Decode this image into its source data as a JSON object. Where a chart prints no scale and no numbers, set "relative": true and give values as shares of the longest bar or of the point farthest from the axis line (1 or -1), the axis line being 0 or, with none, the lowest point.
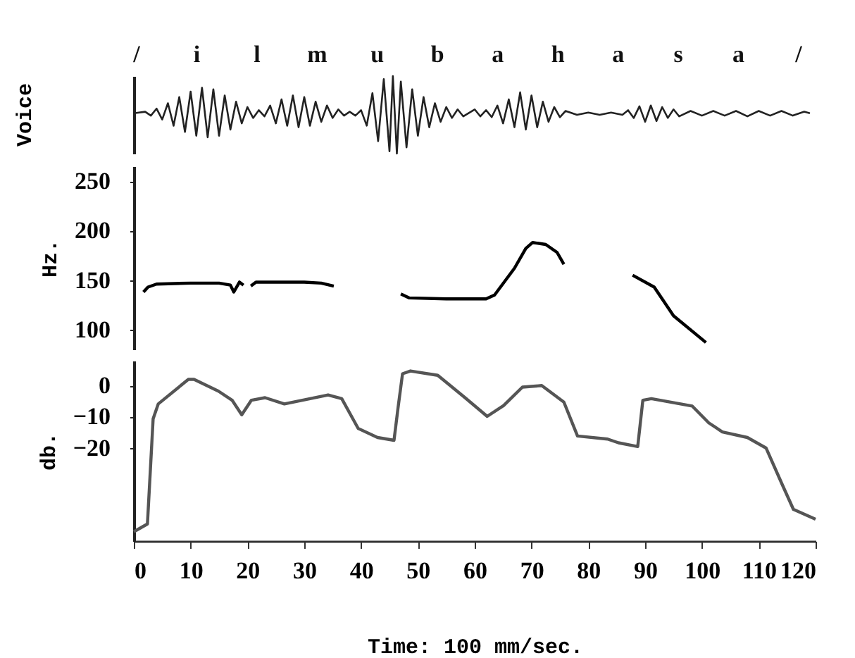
{
  "chart_data": [
    {
      "type": "line",
      "relative": true,
      "ylabel": "Voice",
      "xlim": [
        0,
        120
      ],
      "tick_labels": false,
      "annotations": [
        "/",
        "i",
        "l",
        "m",
        "u",
        "b",
        "a",
        "h",
        "a",
        "s",
        "a",
        "/"
      ],
      "x": [
        0,
        2,
        3,
        4,
        5,
        6,
        7,
        8,
        9,
        10,
        11,
        12,
        13,
        14,
        15,
        16,
        17,
        18,
        19,
        20,
        21,
        22,
        23,
        24,
        25,
        26,
        27,
        28,
        29,
        30,
        31,
        32,
        33,
        34,
        35,
        36,
        37,
        38,
        39,
        40,
        41,
        42,
        43,
        44,
        45,
        45.6,
        46.3,
        47,
        48,
        49,
        50,
        51,
        52,
        53,
        54,
        55,
        56,
        57,
        58,
        60,
        61,
        62,
        63,
        64,
        65,
        66,
        67,
        68,
        69,
        70,
        71,
        72,
        73,
        74,
        75,
        76,
        78,
        80,
        82,
        84,
        86,
        87,
        88,
        89,
        90,
        91,
        92,
        93,
        94,
        95,
        96,
        98,
        100,
        102,
        104,
        106,
        108,
        110,
        112,
        114,
        116,
        118,
        119
      ],
      "series": [
        {
          "color": "#222222",
          "values": [
            0.52,
            0.54,
            0.49,
            0.58,
            0.44,
            0.65,
            0.36,
            0.73,
            0.28,
            0.8,
            0.23,
            0.85,
            0.21,
            0.83,
            0.23,
            0.75,
            0.31,
            0.67,
            0.39,
            0.6,
            0.46,
            0.56,
            0.48,
            0.62,
            0.39,
            0.7,
            0.36,
            0.75,
            0.34,
            0.73,
            0.36,
            0.67,
            0.41,
            0.62,
            0.46,
            0.57,
            0.49,
            0.54,
            0.49,
            0.56,
            0.36,
            0.78,
            0.16,
            0.96,
            0.03,
            1,
            0,
            0.93,
            0.08,
            0.83,
            0.23,
            0.73,
            0.34,
            0.65,
            0.41,
            0.6,
            0.46,
            0.57,
            0.48,
            0.57,
            0.48,
            0.56,
            0.47,
            0.62,
            0.39,
            0.7,
            0.34,
            0.79,
            0.31,
            0.75,
            0.34,
            0.67,
            0.41,
            0.6,
            0.47,
            0.55,
            0.5,
            0.53,
            0.5,
            0.53,
            0.5,
            0.56,
            0.46,
            0.61,
            0.41,
            0.62,
            0.42,
            0.6,
            0.46,
            0.57,
            0.48,
            0.55,
            0.49,
            0.55,
            0.49,
            0.55,
            0.48,
            0.55,
            0.49,
            0.55,
            0.49,
            0.54,
            0.52
          ]
        }
      ]
    },
    {
      "type": "line",
      "ylabel": "Hz.",
      "xlim": [
        0,
        120
      ],
      "ylim": [
        80,
        265
      ],
      "yticks": [
        100,
        150,
        200,
        250
      ],
      "tick_labels": "y",
      "series": [
        {
          "color": "#000000",
          "x": [
            1.7,
            2.5,
            4,
            10,
            15,
            17,
            17.6,
            18.6,
            19.3
          ],
          "values": [
            138,
            143,
            146,
            147,
            147,
            145,
            138,
            148,
            145
          ]
        },
        {
          "color": "#000000",
          "x": [
            20.6,
            21.5,
            23,
            30,
            33,
            35.2
          ],
          "values": [
            144,
            148,
            148,
            148,
            147,
            144
          ]
        },
        {
          "color": "#000000",
          "x": [
            47,
            48.5,
            55,
            62,
            63.5,
            67,
            69,
            70.2,
            72.5,
            74.5,
            75.7
          ],
          "values": [
            136,
            132,
            131,
            131,
            135,
            162,
            182,
            188,
            186,
            178,
            166
          ]
        },
        {
          "color": "#000000",
          "x": [
            87.8,
            91.6,
            95,
            100.7
          ],
          "values": [
            155,
            143,
            114,
            87
          ]
        }
      ]
    },
    {
      "type": "line",
      "ylabel": "db.",
      "xlabel": "Time:  100 mm/sec.",
      "xlim": [
        0,
        120
      ],
      "xticks": [
        0,
        10,
        20,
        30,
        40,
        50,
        60,
        70,
        80,
        90,
        100,
        110,
        120
      ],
      "ylim": [
        -50,
        8
      ],
      "yticks": [
        0,
        -10,
        -20
      ],
      "x": [
        0,
        2.4,
        3.4,
        4.3,
        9.6,
        10.6,
        14.9,
        17.3,
        19,
        20.7,
        23.1,
        26.5,
        34.2,
        36.6,
        39.5,
        42.9,
        45.8,
        46.5,
        47.3,
        48.7,
        53.5,
        58.3,
        62.2,
        65.1,
        68.4,
        71.8,
        75.7,
        78.1,
        83.4,
        85.3,
        88.7,
        89.6,
        91.1,
        98.3,
        101.2,
        103.6,
        108,
        111.3,
        114.2,
        116.1,
        120
      ],
      "series": [
        {
          "color": "#555555",
          "values": [
            -47,
            -44.5,
            -10.7,
            -5.9,
            2,
            2,
            -1.8,
            -4.7,
            -9.4,
            -4.7,
            -3.9,
            -5.9,
            -3,
            -4.2,
            -13.8,
            -16.7,
            -17.6,
            -7.3,
            3.8,
            4.7,
            3.3,
            -3.9,
            -9.9,
            -6.4,
            -0.5,
            0,
            -5.3,
            -16.2,
            -17.2,
            -18.4,
            -19.6,
            -4.7,
            -4.2,
            -6.6,
            -12,
            -14.9,
            -16.7,
            -20.1,
            -32.1,
            -39.8,
            -43
          ]
        }
      ]
    }
  ]
}
